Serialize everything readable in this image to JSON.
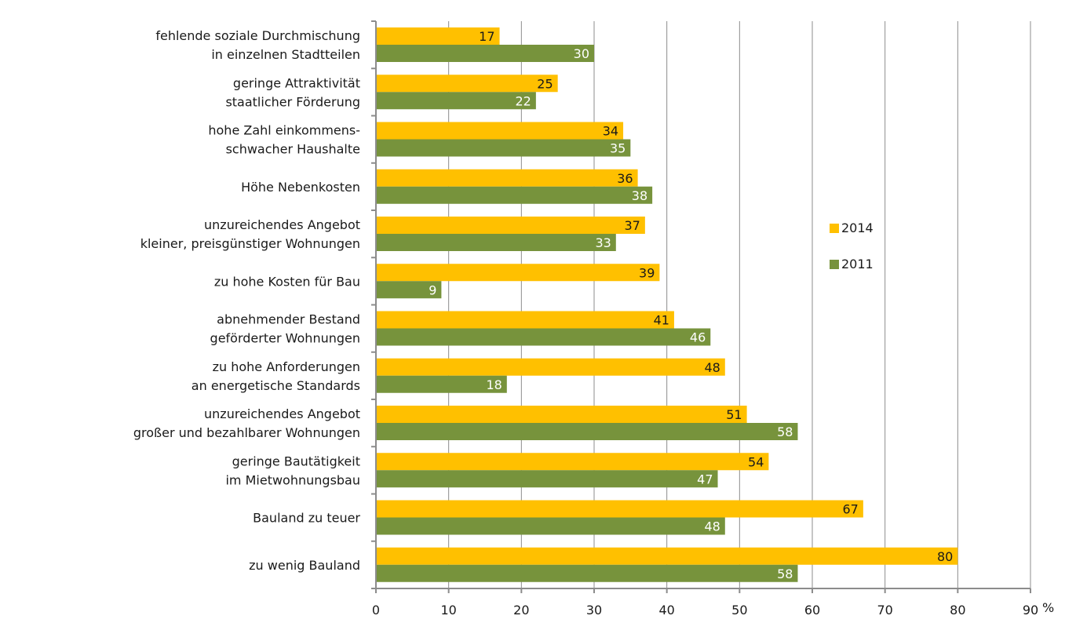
{
  "chart_data": {
    "type": "bar",
    "orientation": "horizontal",
    "categories": [
      [
        "fehlende soziale Durchmischung",
        "in einzelnen Stadtteilen"
      ],
      [
        "geringe Attraktivität",
        "staatlicher Förderung"
      ],
      [
        "hohe Zahl einkommens-",
        "schwacher Haushalte"
      ],
      [
        "Höhe Nebenkosten"
      ],
      [
        "unzureichendes Angebot",
        "kleiner, preisgünstiger Wohnungen"
      ],
      [
        "zu hohe Kosten für Bau"
      ],
      [
        "abnehmender  Bestand",
        "geförderter Wohnungen"
      ],
      [
        "zu hohe Anforderungen",
        "an energetische Standards"
      ],
      [
        "unzureichendes Angebot",
        "großer und bezahlbarer Wohnungen"
      ],
      [
        "geringe Bautätigkeit",
        "im Mietwohnungsbau"
      ],
      [
        "Bauland zu teuer"
      ],
      [
        "zu wenig Bauland"
      ]
    ],
    "series": [
      {
        "name": "2014",
        "color": "#ffc000",
        "label_color": "#1a1a1a",
        "values": [
          17,
          25,
          34,
          36,
          37,
          39,
          41,
          48,
          51,
          54,
          67,
          80
        ]
      },
      {
        "name": "2011",
        "color": "#77933c",
        "label_color": "#ffffff",
        "values": [
          30,
          22,
          35,
          38,
          33,
          9,
          46,
          18,
          58,
          47,
          48,
          58
        ]
      }
    ],
    "xlim": [
      0,
      90
    ],
    "xticks": [
      0,
      10,
      20,
      30,
      40,
      50,
      60,
      70,
      80,
      90
    ],
    "x_unit": "%",
    "grid": true,
    "legend_position": "right"
  }
}
